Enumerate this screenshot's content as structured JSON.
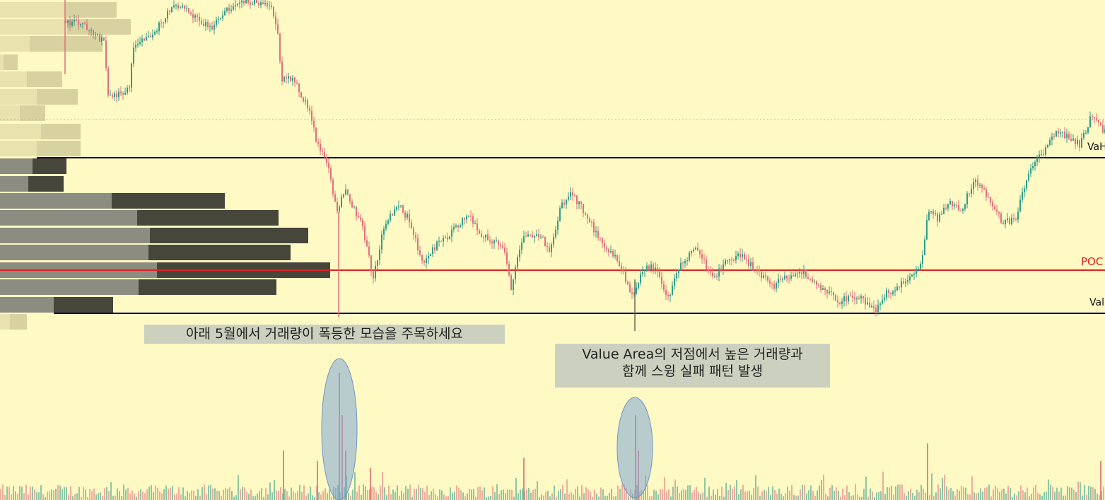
{
  "colors": {
    "background": "#fff9c4",
    "candle_up": "#2e9e8a",
    "candle_down": "#e0707a",
    "poc_line": "#e02020",
    "value_area_line": "#111111",
    "profile_outside": "#d6cf9e",
    "profile_inside_left": "#8c8c80",
    "profile_inside_right": "#46463a",
    "highlight_ellipse": "#7fa7d6"
  },
  "annotations": {
    "may_volume_note": "아래 5월에서 거래량이 폭등한 모습을 주목하세요",
    "value_area_note": "Value Area의 저점에서 높은 거래량과\n함께 스윙 실패 패턴 발생"
  },
  "levels": {
    "vah_label": "VaH",
    "poc_label": "POC",
    "val_label": "Val"
  },
  "chart_data": {
    "type": "candlestick",
    "grid": false,
    "y_range": [
      0,
      707
    ],
    "price_series": [
      {
        "x": 92,
        "y": 30
      },
      {
        "x": 120,
        "y": 35
      },
      {
        "x": 150,
        "y": 60
      },
      {
        "x": 155,
        "y": 140
      },
      {
        "x": 185,
        "y": 125
      },
      {
        "x": 190,
        "y": 70
      },
      {
        "x": 220,
        "y": 45
      },
      {
        "x": 250,
        "y": 5
      },
      {
        "x": 300,
        "y": 40
      },
      {
        "x": 320,
        "y": 15
      },
      {
        "x": 350,
        "y": 0
      },
      {
        "x": 385,
        "y": 10
      },
      {
        "x": 395,
        "y": 50
      },
      {
        "x": 400,
        "y": 110
      },
      {
        "x": 420,
        "y": 115
      },
      {
        "x": 440,
        "y": 160
      },
      {
        "x": 450,
        "y": 200
      },
      {
        "x": 465,
        "y": 230
      },
      {
        "x": 478,
        "y": 300
      },
      {
        "x": 490,
        "y": 270
      },
      {
        "x": 505,
        "y": 300
      },
      {
        "x": 515,
        "y": 320
      },
      {
        "x": 530,
        "y": 395
      },
      {
        "x": 545,
        "y": 320
      },
      {
        "x": 565,
        "y": 290
      },
      {
        "x": 580,
        "y": 310
      },
      {
        "x": 600,
        "y": 370
      },
      {
        "x": 620,
        "y": 345
      },
      {
        "x": 640,
        "y": 330
      },
      {
        "x": 665,
        "y": 300
      },
      {
        "x": 680,
        "y": 330
      },
      {
        "x": 715,
        "y": 350
      },
      {
        "x": 725,
        "y": 410
      },
      {
        "x": 740,
        "y": 340
      },
      {
        "x": 765,
        "y": 330
      },
      {
        "x": 780,
        "y": 355
      },
      {
        "x": 795,
        "y": 290
      },
      {
        "x": 810,
        "y": 275
      },
      {
        "x": 830,
        "y": 300
      },
      {
        "x": 850,
        "y": 340
      },
      {
        "x": 870,
        "y": 360
      },
      {
        "x": 885,
        "y": 390
      },
      {
        "x": 898,
        "y": 420
      },
      {
        "x": 910,
        "y": 380
      },
      {
        "x": 930,
        "y": 375
      },
      {
        "x": 945,
        "y": 425
      },
      {
        "x": 965,
        "y": 375
      },
      {
        "x": 988,
        "y": 350
      },
      {
        "x": 1010,
        "y": 395
      },
      {
        "x": 1030,
        "y": 370
      },
      {
        "x": 1048,
        "y": 360
      },
      {
        "x": 1070,
        "y": 380
      },
      {
        "x": 1095,
        "y": 405
      },
      {
        "x": 1115,
        "y": 390
      },
      {
        "x": 1140,
        "y": 385
      },
      {
        "x": 1165,
        "y": 410
      },
      {
        "x": 1190,
        "y": 425
      },
      {
        "x": 1215,
        "y": 420
      },
      {
        "x": 1240,
        "y": 440
      },
      {
        "x": 1255,
        "y": 415
      },
      {
        "x": 1280,
        "y": 400
      },
      {
        "x": 1305,
        "y": 375
      },
      {
        "x": 1315,
        "y": 300
      },
      {
        "x": 1330,
        "y": 310
      },
      {
        "x": 1345,
        "y": 285
      },
      {
        "x": 1360,
        "y": 300
      },
      {
        "x": 1380,
        "y": 255
      },
      {
        "x": 1395,
        "y": 270
      },
      {
        "x": 1420,
        "y": 315
      },
      {
        "x": 1440,
        "y": 310
      },
      {
        "x": 1450,
        "y": 265
      },
      {
        "x": 1465,
        "y": 225
      },
      {
        "x": 1480,
        "y": 215
      },
      {
        "x": 1495,
        "y": 185
      },
      {
        "x": 1515,
        "y": 195
      },
      {
        "x": 1530,
        "y": 205
      },
      {
        "x": 1545,
        "y": 165
      },
      {
        "x": 1563,
        "y": 185
      }
    ],
    "volume_profile": [
      {
        "y": 14,
        "left": 93,
        "right": 165,
        "zone": "outside"
      },
      {
        "y": 38,
        "left": 95,
        "right": 185,
        "zone": "outside"
      },
      {
        "y": 62,
        "left": 42,
        "right": 145,
        "zone": "outside"
      },
      {
        "y": 88,
        "left": 5,
        "right": 25,
        "zone": "outside"
      },
      {
        "y": 112,
        "left": 38,
        "right": 88,
        "zone": "outside"
      },
      {
        "y": 137,
        "left": 52,
        "right": 110,
        "zone": "outside"
      },
      {
        "y": 160,
        "left": 28,
        "right": 64,
        "zone": "outside"
      },
      {
        "y": 186,
        "left": 58,
        "right": 114,
        "zone": "outside"
      },
      {
        "y": 210,
        "left": 52,
        "right": 114,
        "zone": "outside"
      },
      {
        "y": 235,
        "left": 46,
        "right": 94,
        "zone": "inside"
      },
      {
        "y": 260,
        "left": 40,
        "right": 90,
        "zone": "inside"
      },
      {
        "y": 284,
        "left": 158,
        "right": 318,
        "zone": "inside"
      },
      {
        "y": 308,
        "left": 194,
        "right": 394,
        "zone": "inside"
      },
      {
        "y": 333,
        "left": 212,
        "right": 436,
        "zone": "inside"
      },
      {
        "y": 357,
        "left": 210,
        "right": 411,
        "zone": "inside"
      },
      {
        "y": 382,
        "left": 222,
        "right": 467,
        "zone": "inside"
      },
      {
        "y": 406,
        "left": 196,
        "right": 391,
        "zone": "inside"
      },
      {
        "y": 431,
        "left": 76,
        "right": 160,
        "zone": "inside"
      },
      {
        "y": 455,
        "left": 14,
        "right": 38,
        "zone": "outside"
      }
    ],
    "levels": {
      "vah": 223,
      "poc": 382,
      "val": 443,
      "upper_dotted": 169
    },
    "volume_spikes": [
      {
        "x": 479,
        "h": 180
      },
      {
        "x": 483,
        "h": 120
      },
      {
        "x": 488,
        "h": 70
      },
      {
        "x": 898,
        "h": 120
      },
      {
        "x": 902,
        "h": 70
      },
      {
        "x": 400,
        "h": 70
      },
      {
        "x": 448,
        "h": 55
      },
      {
        "x": 523,
        "h": 45
      },
      {
        "x": 740,
        "h": 60
      },
      {
        "x": 1311,
        "h": 80
      },
      {
        "x": 1556,
        "h": 55
      }
    ],
    "highlight_regions": [
      {
        "cx": 480,
        "cy": 607,
        "rx": 25,
        "ry": 100
      },
      {
        "cx": 898,
        "cy": 633,
        "rx": 25,
        "ry": 71
      }
    ]
  }
}
